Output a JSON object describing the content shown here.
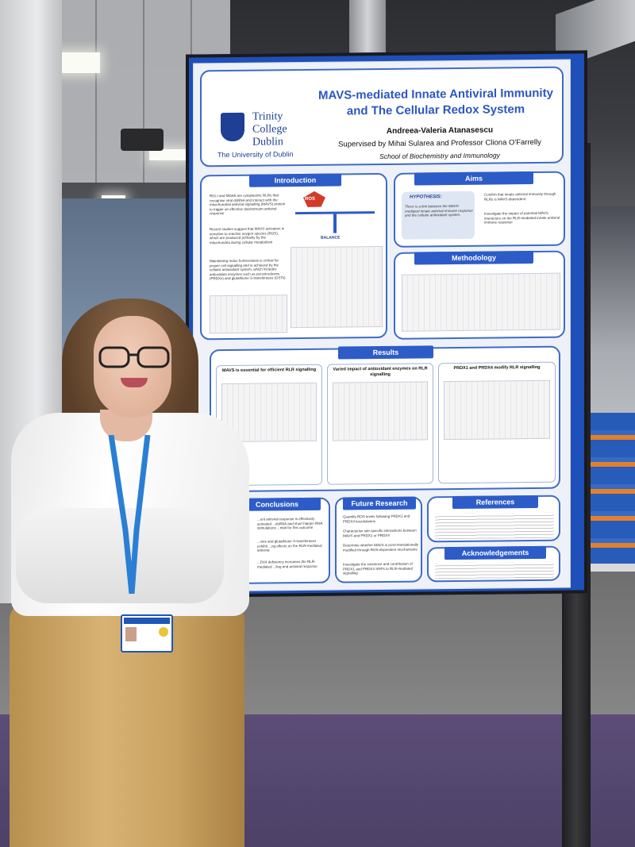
{
  "scene": "person-standing-beside-research-poster",
  "poster": {
    "institution": {
      "name_line1": "Trinity",
      "name_line2": "College",
      "name_line3": "Dublin",
      "subtitle": "The University of Dublin"
    },
    "title_line1": "MAVS-mediated Innate Antiviral Immunity",
    "title_line2": "and The Cellular Redox System",
    "author": "Andreea-Valeria Atanasescu",
    "supervisors": "Supervised by Mihai Sularea and Professor Cliona O'Farrelly",
    "school": "School of Biochemistry and Immunology",
    "sections": {
      "introduction": "Introduction",
      "aims": "Aims",
      "methodology": "Methodology",
      "results": "Results",
      "conclusions": "Conclusions",
      "future_research": "Future Research",
      "references": "References",
      "acknowledgements": "Acknowledgements"
    },
    "introduction_bullets": [
      "RIG-I and MDA5 are cytoplasmic RLRs that recognise viral dsRNA and interact with the mitochondrial antiviral signalling (MAVS) protein to trigger an effective downstream antiviral response",
      "Recent studies suggest that MAVS activation is sensitive to reactive oxygen species (ROS), which are produced primarily by the mitochondria during cellular metabolism",
      "Maintaining redox homeostasis is critical for proper cell signalling and is achieved by the cellular antioxidant system, which includes antioxidant enzymes such as peroxiredoxins (PRDXs) and glutathione S-transferases (GSTs)"
    ],
    "balance_label": "BALANCE",
    "ros_label": "ROS",
    "hypothesis_label": "HYPOTHESIS:",
    "hypothesis_text": "There is a link between the MAVS-mediated innate antiviral immune response and the cellular antioxidant system.",
    "aims_bullets": [
      "Confirm that innate antiviral immunity through RLRs is MAVS-dependent",
      "Investigate the impact of potential MAVS interactors on the RLR-mediated innate antiviral immune response"
    ],
    "results_panels": [
      "MAVS is essential for efficient RLR signalling",
      "Varied impact of antioxidant enzymes on RLR signalling",
      "PRDX1 and PRDX4 modify RLR signalling"
    ],
    "future_research_bullets": [
      "Quantify ROS levels following PRDX1 and PRDX4 knockdowns",
      "Characterise site-specific interactions between MAVS and PRDX1 or PRDX4",
      "Determine whether MAVS is post-translationally modified through ROS-dependent mechanisms",
      "Investigate the existence and contribution of PRDX1 and PRDX4 SNPs to RLR-mediated signalling"
    ],
    "conclusion_snippets": [
      "...ent antiviral response is effectively activated ...dsRNA and short hairpin RNA stimulations ...ntial for this outcome",
      "...xins and glutathione S-transferases exhibit ...ng effects on the RLR-mediated antiviral",
      "...DX4 deficiency increases the RLR-mediated ...ling and antiviral response"
    ]
  },
  "colors": {
    "poster_blue": "#2d5cc8",
    "title_blue": "#2c57c0",
    "board_blue": "#1f4fb8",
    "shirt": "#f2f2f2",
    "pants": "#d2ab6b",
    "floor_purple": "#544770"
  }
}
